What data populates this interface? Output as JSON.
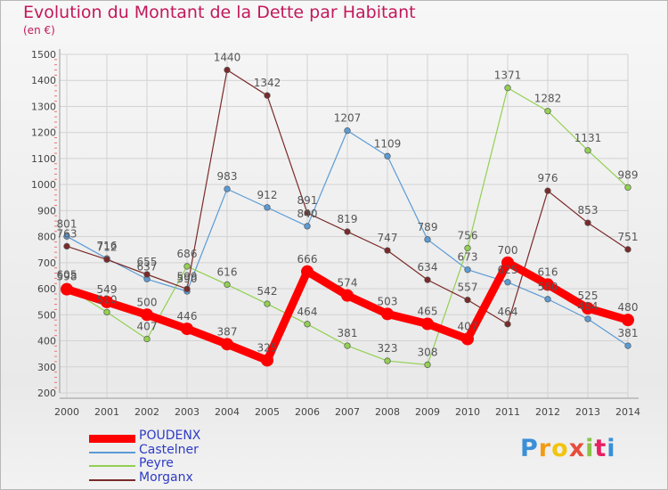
{
  "title": "Evolution du Montant de la Dette par Habitant",
  "subtitle": "(en €)",
  "logo": "Proxiti",
  "chart_data": {
    "type": "line",
    "title": "Evolution du Montant de la Dette par Habitant",
    "ylabel": "(en €)",
    "xlabel": "",
    "ylim": [
      200,
      1500
    ],
    "yticks": [
      200,
      300,
      400,
      500,
      600,
      700,
      800,
      900,
      1000,
      1100,
      1200,
      1300,
      1400,
      1500
    ],
    "grid": true,
    "legend_position": "bottom-left",
    "categories": [
      "2000",
      "2001",
      "2002",
      "2003",
      "2004",
      "2005",
      "2006",
      "2007",
      "2008",
      "2009",
      "2010",
      "2011",
      "2012",
      "2013",
      "2014"
    ],
    "series": [
      {
        "name": "POUDENX",
        "color": "#ff0000",
        "values": [
          598,
          549,
          500,
          446,
          387,
          325,
          666,
          574,
          503,
          465,
          407,
          700,
          616,
          525,
          480
        ]
      },
      {
        "name": "Castelner",
        "color": "#5b9bd5",
        "values": [
          801,
          716,
          637,
          590,
          983,
          912,
          840,
          1207,
          1109,
          789,
          673,
          625,
          560,
          484,
          381
        ]
      },
      {
        "name": "Peyre",
        "color": "#92d050",
        "values": [
          605,
          510,
          407,
          686,
          616,
          542,
          464,
          381,
          323,
          308,
          756,
          1371,
          1282,
          1131,
          989
        ]
      },
      {
        "name": "Morganx",
        "color": "#7b2a2a",
        "values": [
          763,
          712,
          655,
          599,
          1440,
          1342,
          891,
          819,
          747,
          634,
          557,
          464,
          976,
          853,
          751
        ]
      }
    ]
  }
}
